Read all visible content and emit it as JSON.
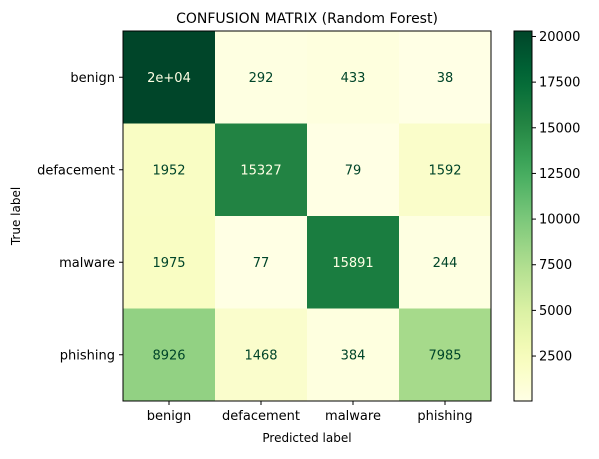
{
  "chart_data": {
    "type": "heatmap",
    "title": "CONFUSION MATRIX (Random Forest)",
    "xlabel": "Predicted label",
    "ylabel": "True label",
    "x_categories": [
      "benign",
      "defacement",
      "malware",
      "phishing"
    ],
    "y_categories": [
      "benign",
      "defacement",
      "malware",
      "phishing"
    ],
    "values": [
      [
        20300,
        292,
        433,
        38
      ],
      [
        1952,
        15327,
        79,
        1592
      ],
      [
        1975,
        77,
        15891,
        244
      ],
      [
        8926,
        1468,
        384,
        7985
      ]
    ],
    "cell_labels": [
      [
        "2e+04",
        "292",
        "433",
        "38"
      ],
      [
        "1952",
        "15327",
        "79",
        "1592"
      ],
      [
        "1975",
        "77",
        "15891",
        "244"
      ],
      [
        "8926",
        "1468",
        "384",
        "7985"
      ]
    ],
    "colormap": "YlGn",
    "colorbar": {
      "range": [
        38,
        20300
      ],
      "ticks": [
        2500,
        5000,
        7500,
        10000,
        12500,
        15000,
        17500,
        20000
      ],
      "tick_labels": [
        "2500",
        "5000",
        "7500",
        "10000",
        "12500",
        "15000",
        "17500",
        "20000"
      ]
    },
    "colors": {
      "low": "#ffffe5",
      "high": "#004529",
      "text_dark": "#004529",
      "text_light": "#ffffe5"
    }
  }
}
